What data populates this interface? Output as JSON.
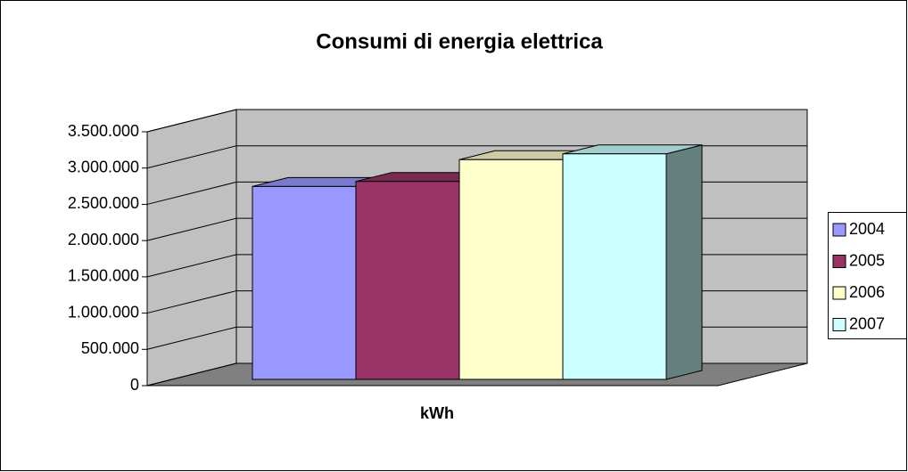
{
  "chart_data": {
    "type": "bar3d",
    "title": "Consumi di energia elettrica",
    "categories": [
      "kWh"
    ],
    "series": [
      {
        "name": "2004",
        "color": "#9999ff",
        "values": [
          2660000
        ]
      },
      {
        "name": "2005",
        "color": "#993366",
        "values": [
          2730000
        ]
      },
      {
        "name": "2006",
        "color": "#ffffcc",
        "values": [
          3030000
        ]
      },
      {
        "name": "2007",
        "color": "#ccffff",
        "values": [
          3110000
        ]
      }
    ],
    "ylim": [
      0,
      3500000
    ],
    "yticks": [
      0,
      {
        "value": 500000,
        "label": "500.000"
      },
      {
        "value": 1000000,
        "label": "1.000.000"
      },
      {
        "value": 1500000,
        "label": "1.500.000"
      },
      {
        "value": 2000000,
        "label": "2.000.000"
      },
      {
        "value": 2500000,
        "label": "2.500.000"
      },
      {
        "value": 3000000,
        "label": "3.000.000"
      },
      {
        "value": 3500000,
        "label": "3.500.000"
      }
    ],
    "grid": true,
    "legend": "right"
  }
}
